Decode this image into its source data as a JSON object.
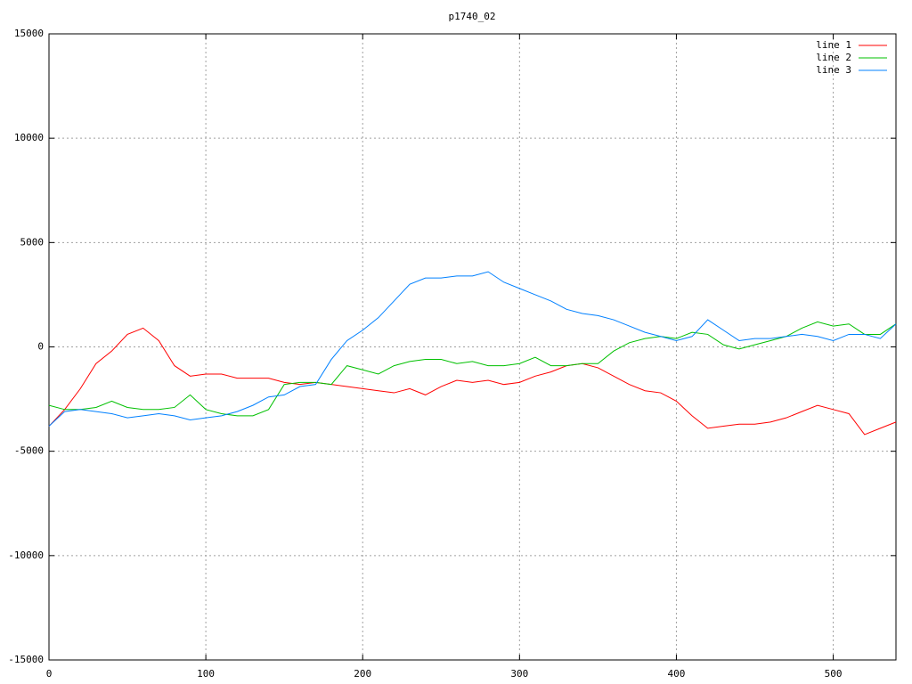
{
  "chart_data": {
    "type": "line",
    "title": "p1740_02",
    "x": [
      0,
      10,
      20,
      30,
      40,
      50,
      60,
      70,
      80,
      90,
      100,
      110,
      120,
      130,
      140,
      150,
      160,
      170,
      180,
      190,
      200,
      210,
      220,
      230,
      240,
      250,
      260,
      270,
      280,
      290,
      300,
      310,
      320,
      330,
      340,
      350,
      360,
      370,
      380,
      390,
      400,
      410,
      420,
      430,
      440,
      450,
      460,
      470,
      480,
      490,
      500,
      510,
      520,
      530,
      540
    ],
    "series": [
      {
        "name": "line 1",
        "color": "#ff0000",
        "values": [
          -3800,
          -3000,
          -2000,
          -800,
          -200,
          600,
          900,
          300,
          -900,
          -1400,
          -1300,
          -1300,
          -1500,
          -1500,
          -1500,
          -1700,
          -1800,
          -1700,
          -1800,
          -1900,
          -2000,
          -2100,
          -2200,
          -2000,
          -2300,
          -1900,
          -1600,
          -1700,
          -1600,
          -1800,
          -1700,
          -1400,
          -1200,
          -900,
          -800,
          -1000,
          -1400,
          -1800,
          -2100,
          -2200,
          -2600,
          -3300,
          -3900,
          -3800,
          -3700,
          -3700,
          -3600,
          -3400,
          -3100,
          -2800,
          -3000,
          -3200,
          -4200,
          -3900,
          -3600
        ]
      },
      {
        "name": "line 2",
        "color": "#00c000",
        "values": [
          -2800,
          -3000,
          -3000,
          -2900,
          -2600,
          -2900,
          -3000,
          -3000,
          -2900,
          -2300,
          -3000,
          -3200,
          -3300,
          -3300,
          -3000,
          -1800,
          -1700,
          -1700,
          -1800,
          -900,
          -1100,
          -1300,
          -900,
          -700,
          -600,
          -600,
          -800,
          -700,
          -900,
          -900,
          -800,
          -500,
          -900,
          -900,
          -800,
          -800,
          -200,
          200,
          400,
          500,
          400,
          700,
          600,
          100,
          -100,
          100,
          300,
          500,
          900,
          1200,
          1000,
          1100,
          600,
          600,
          1100
        ]
      },
      {
        "name": "line 3",
        "color": "#0080ff",
        "values": [
          -3800,
          -3100,
          -3000,
          -3100,
          -3200,
          -3400,
          -3300,
          -3200,
          -3300,
          -3500,
          -3400,
          -3300,
          -3100,
          -2800,
          -2400,
          -2300,
          -1900,
          -1800,
          -600,
          300,
          800,
          1400,
          2200,
          3000,
          3300,
          3300,
          3400,
          3400,
          3600,
          3100,
          2800,
          2500,
          2200,
          1800,
          1600,
          1500,
          1300,
          1000,
          700,
          500,
          300,
          500,
          1300,
          800,
          300,
          400,
          400,
          500,
          600,
          500,
          300,
          600,
          600,
          400,
          1100
        ]
      }
    ],
    "xlim": [
      0,
      540
    ],
    "xticks": [
      0,
      100,
      200,
      300,
      400,
      500
    ],
    "ylim": [
      -15000,
      15000
    ],
    "yticks": [
      -15000,
      -10000,
      -5000,
      0,
      5000,
      10000,
      15000
    ],
    "grid": true,
    "legend": "top-right"
  }
}
